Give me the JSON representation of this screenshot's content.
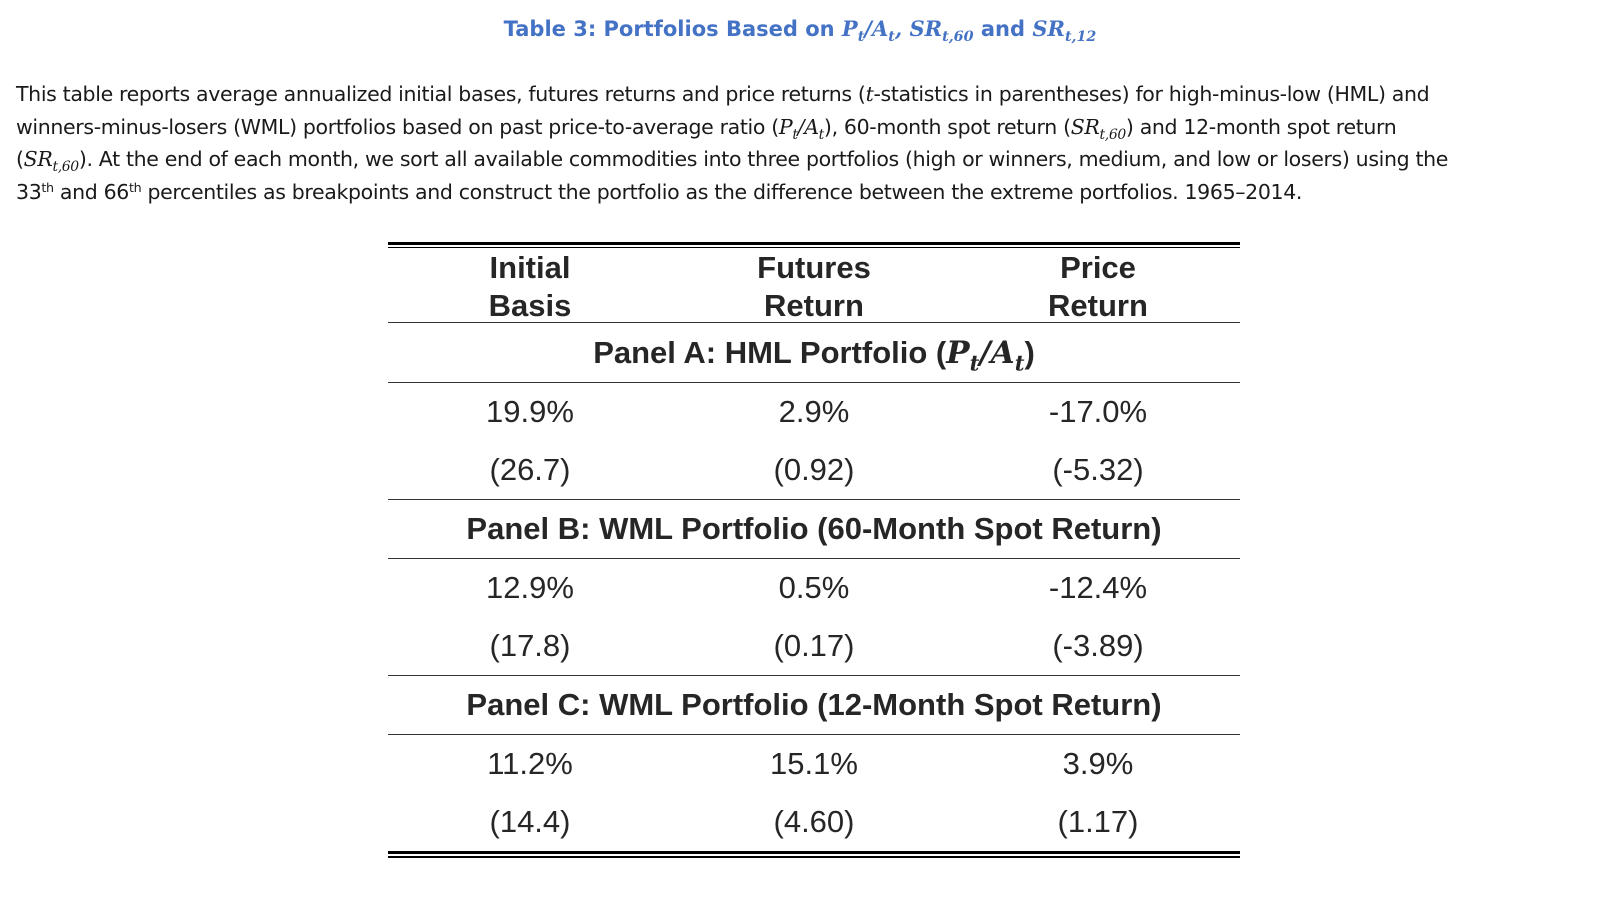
{
  "title": {
    "prefix": "Table 3: Portfolios Based on ",
    "sep1": "/",
    "sep2": ", ",
    "mid": " and ",
    "P": "P",
    "A": "A",
    "t": "t",
    "SR": "SR",
    "sub60": "t,60",
    "sub12": "t,12"
  },
  "caption": {
    "l1": "This table reports average annualized initial bases, futures returns and price returns (",
    "l1_t": "t",
    "l1_b": "-statistics in parentheses) for high-minus-low (HML) and",
    "l2a": "winners-minus-losers (WML) portfolios based on past price-to-average ratio (",
    "l2b": "), 60-month spot return (",
    "l2c": ") and 12-month spot return",
    "l3a": "). At the end of each month, we sort all available commodities into three portfolios (high or winners, medium, and low or losers) using the",
    "l4_33": "33",
    "th": "th",
    "l4_and": " and 66",
    "l4_rest": " percentiles as breakpoints and construct the portfolio as the difference between the extreme portfolios. 1965–2014."
  },
  "table": {
    "headers": [
      {
        "line1": "Initial",
        "line2": "Basis"
      },
      {
        "line1": "Futures",
        "line2": "Return"
      },
      {
        "line1": "Price",
        "line2": "Return"
      }
    ],
    "panels": [
      {
        "label": "Panel A: HML Portfolio (",
        "label_end": ")",
        "values": [
          "19.9%",
          "2.9%",
          "-17.0%"
        ],
        "tstats": [
          "(26.7)",
          "(0.92)",
          "(-5.32)"
        ]
      },
      {
        "label": "Panel B: WML Portfolio (60-Month Spot Return)",
        "values": [
          "12.9%",
          "0.5%",
          "-12.4%"
        ],
        "tstats": [
          "(17.8)",
          "(0.17)",
          "(-3.89)"
        ]
      },
      {
        "label": "Panel C: WML Portfolio (12-Month Spot Return)",
        "values": [
          "11.2%",
          "15.1%",
          "3.9%"
        ],
        "tstats": [
          "(14.4)",
          "(4.60)",
          "(1.17)"
        ]
      }
    ]
  },
  "colors": {
    "title": "#4472C4",
    "text": "#262626"
  }
}
